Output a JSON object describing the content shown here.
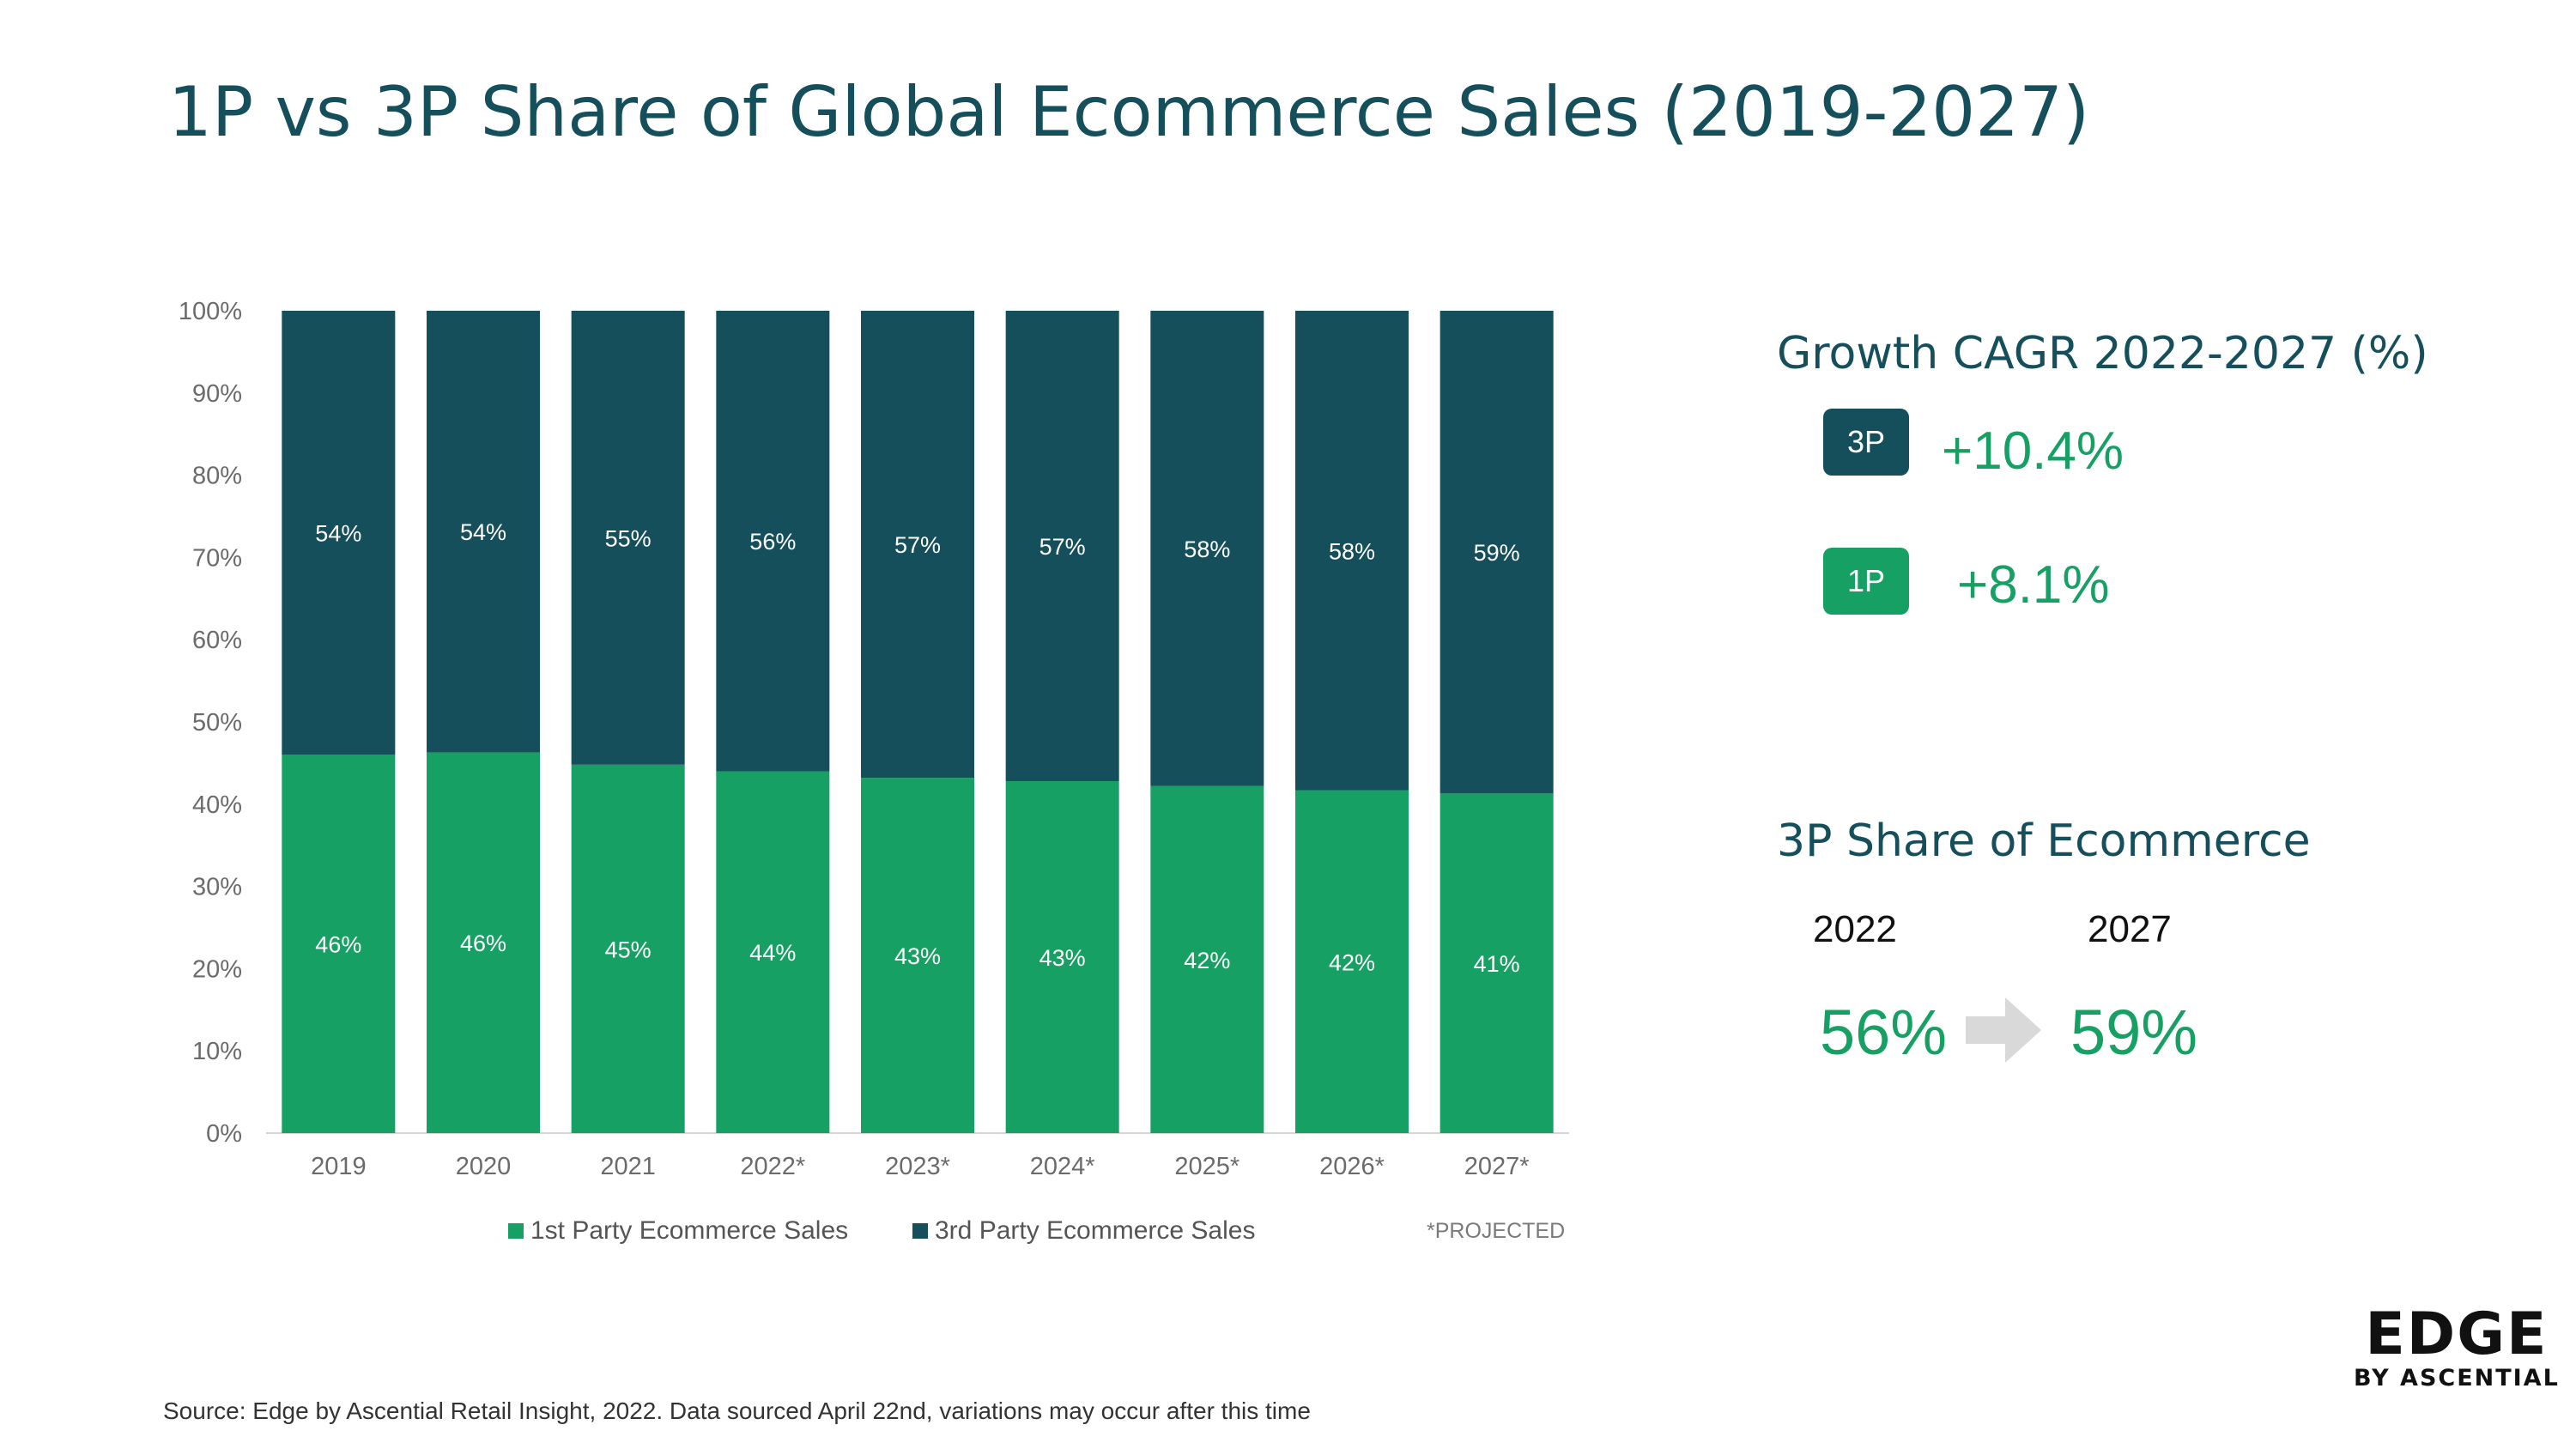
{
  "title": "1P vs 3P Share of Global Ecommerce Sales (2019-2027)",
  "colors": {
    "first_party": "#17a063",
    "third_party": "#154f5b",
    "title": "#154f5b",
    "highlight": "#17a063"
  },
  "chart_data": {
    "type": "bar",
    "stacked": true,
    "categories": [
      "2019",
      "2020",
      "2021",
      "2022*",
      "2023*",
      "2024*",
      "2025*",
      "2026*",
      "2027*"
    ],
    "series": [
      {
        "name": "1st Party Ecommerce Sales",
        "values": [
          46,
          46.3,
          44.8,
          44,
          43.2,
          42.8,
          42.2,
          41.7,
          41.3
        ],
        "labels": [
          "46%",
          "46%",
          "45%",
          "44%",
          "43%",
          "43%",
          "42%",
          "42%",
          "41%"
        ]
      },
      {
        "name": "3rd Party Ecommerce Sales",
        "values": [
          54,
          53.7,
          55.2,
          56,
          56.8,
          57.2,
          57.8,
          58.3,
          58.7
        ],
        "labels": [
          "54%",
          "54%",
          "55%",
          "56%",
          "57%",
          "57%",
          "58%",
          "58%",
          "59%"
        ]
      }
    ],
    "yticks": [
      "0%",
      "10%",
      "20%",
      "30%",
      "40%",
      "50%",
      "60%",
      "70%",
      "80%",
      "90%",
      "100%"
    ],
    "ylim": [
      0,
      100
    ],
    "legend": "bottom",
    "grid": false
  },
  "legend_note": "*PROJECTED",
  "cagr": {
    "heading": "Growth CAGR 2022-2027 (%)",
    "items": [
      {
        "badge": "3P",
        "value": "+10.4%"
      },
      {
        "badge": "1P",
        "value": "+8.1%"
      }
    ]
  },
  "share": {
    "heading": "3P Share of Ecommerce",
    "year_from": "2022",
    "year_to": "2027",
    "value_from": "56%",
    "value_to": "59%",
    "arrow_icon": "arrow-right-icon"
  },
  "logo": {
    "main": "EDGE",
    "sub": "BY ASCENTIAL"
  },
  "source": "Source: Edge by Ascential Retail Insight, 2022. Data sourced April 22nd, variations may occur after this time"
}
